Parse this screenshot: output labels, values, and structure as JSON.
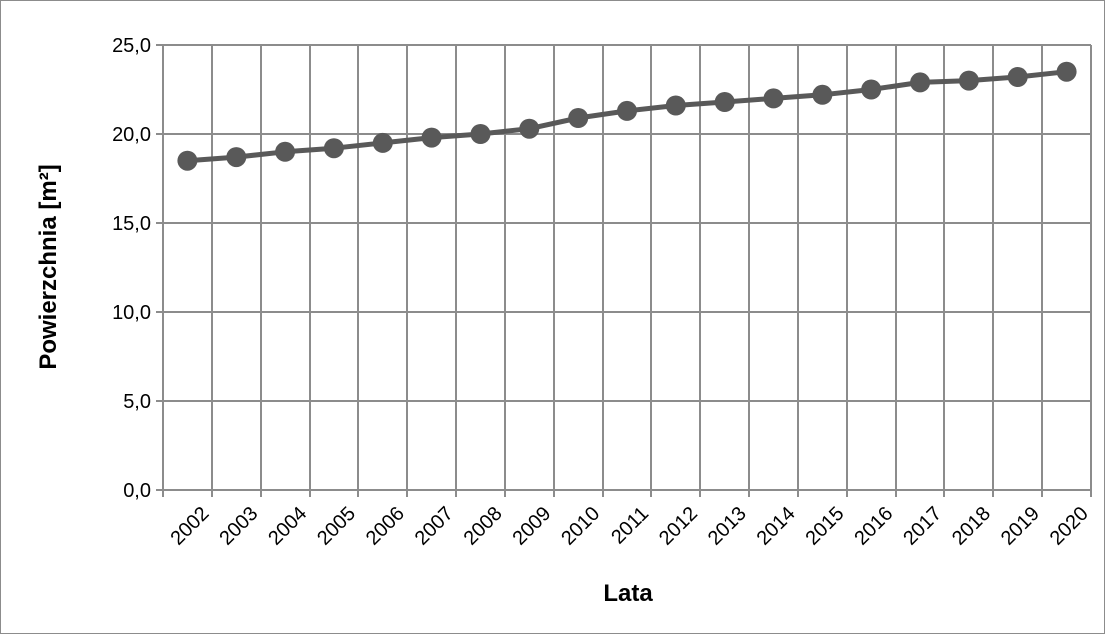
{
  "colors": {
    "series": "#595959",
    "grid": "#8c8c8c",
    "text": "#000000"
  },
  "chart_data": {
    "type": "line",
    "title": "",
    "xlabel": "Lata",
    "ylabel": "Powierzchnia [m²]",
    "ylim": [
      0,
      25
    ],
    "y_ticks": [
      "0,0",
      "5,0",
      "10,0",
      "15,0",
      "20,0",
      "25,0"
    ],
    "x": [
      "2002",
      "2003",
      "2004",
      "2005",
      "2006",
      "2007",
      "2008",
      "2009",
      "2010",
      "2011",
      "2012",
      "2013",
      "2014",
      "2015",
      "2016",
      "2017",
      "2018",
      "2019",
      "2020"
    ],
    "series": [
      {
        "values": [
          18.5,
          18.7,
          19.0,
          19.2,
          19.5,
          19.8,
          20.0,
          20.3,
          20.9,
          21.3,
          21.6,
          21.8,
          22.0,
          22.2,
          22.5,
          22.9,
          23.0,
          23.2,
          23.5
        ]
      }
    ],
    "grid": true,
    "legend": "none"
  }
}
